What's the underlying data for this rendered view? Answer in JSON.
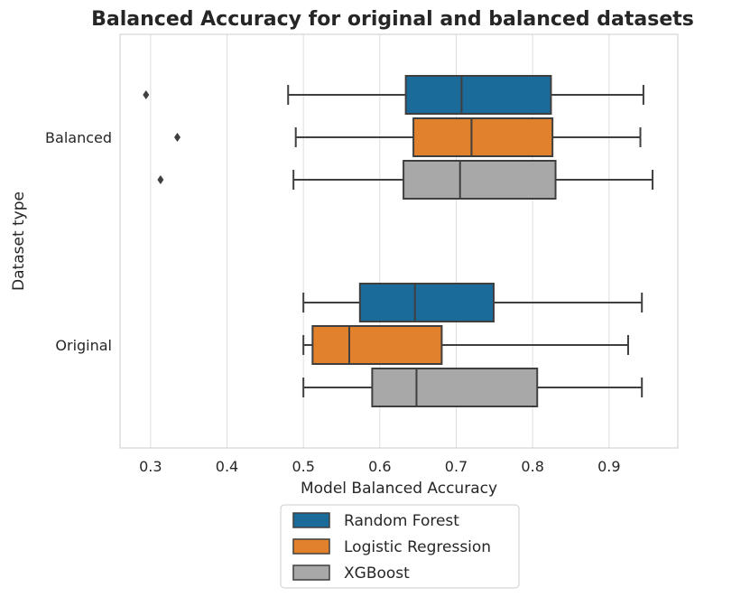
{
  "chart_data": {
    "type": "boxplot",
    "orientation": "horizontal",
    "title": "Balanced Accuracy for original and balanced datasets",
    "xlabel": "Model Balanced Accuracy",
    "ylabel": "Dataset type",
    "xlim": [
      0.26,
      0.99
    ],
    "xticks": [
      0.3,
      0.4,
      0.5,
      0.6,
      0.7,
      0.8,
      0.9
    ],
    "xtick_labels": [
      "0.3",
      "0.4",
      "0.5",
      "0.6",
      "0.7",
      "0.8",
      "0.9"
    ],
    "grid": true,
    "legend_position": "below",
    "categories": [
      "Balanced",
      "Original"
    ],
    "series": [
      {
        "name": "Random Forest",
        "color": "#1a6a9a",
        "boxes": [
          {
            "category": "Balanced",
            "whisker_low": 0.48,
            "q1": 0.634,
            "median": 0.707,
            "q3": 0.824,
            "whisker_high": 0.945,
            "outliers": [
              0.294
            ]
          },
          {
            "category": "Original",
            "whisker_low": 0.5,
            "q1": 0.574,
            "median": 0.646,
            "q3": 0.749,
            "whisker_high": 0.943,
            "outliers": []
          }
        ]
      },
      {
        "name": "Logistic Regression",
        "color": "#e2812c",
        "boxes": [
          {
            "category": "Balanced",
            "whisker_low": 0.49,
            "q1": 0.644,
            "median": 0.72,
            "q3": 0.826,
            "whisker_high": 0.941,
            "outliers": [
              0.335
            ]
          },
          {
            "category": "Original",
            "whisker_low": 0.5,
            "q1": 0.512,
            "median": 0.56,
            "q3": 0.681,
            "whisker_high": 0.925,
            "outliers": []
          }
        ]
      },
      {
        "name": "XGBoost",
        "color": "#a8a8a8",
        "boxes": [
          {
            "category": "Balanced",
            "whisker_low": 0.487,
            "q1": 0.631,
            "median": 0.705,
            "q3": 0.83,
            "whisker_high": 0.957,
            "outliers": [
              0.313
            ]
          },
          {
            "category": "Original",
            "whisker_low": 0.5,
            "q1": 0.59,
            "median": 0.648,
            "q3": 0.806,
            "whisker_high": 0.943,
            "outliers": []
          }
        ]
      }
    ]
  }
}
